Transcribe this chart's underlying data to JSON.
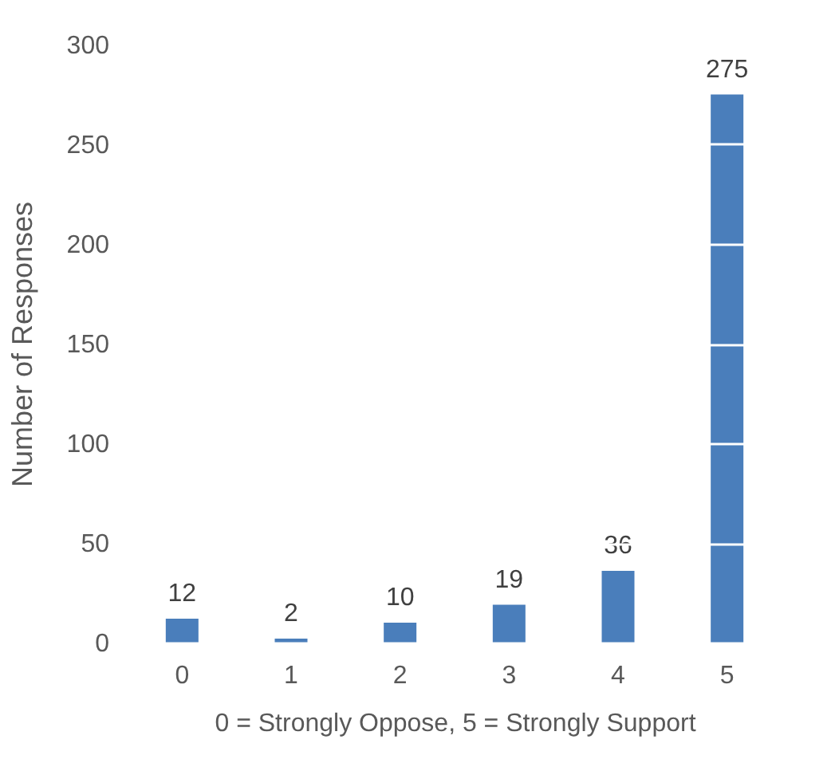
{
  "chart_data": {
    "type": "bar",
    "xlabel": "0 = Strongly Oppose, 5 = Strongly Support",
    "ylabel": "Number of Responses",
    "categories": [
      "0",
      "1",
      "2",
      "3",
      "4",
      "5"
    ],
    "values": [
      12,
      2,
      10,
      19,
      36,
      275
    ],
    "color": "#4a7ebb",
    "ylim": [
      0,
      300
    ],
    "yticks": [
      0,
      50,
      100,
      150,
      200,
      250,
      300
    ],
    "grid": "y",
    "data_labels": true
  }
}
